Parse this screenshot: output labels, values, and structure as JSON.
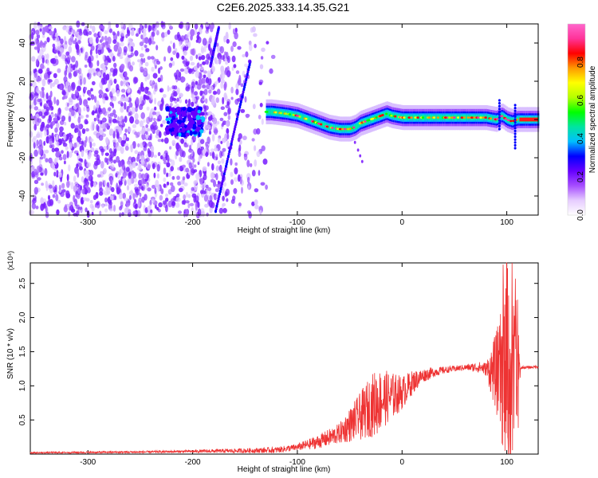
{
  "figure_title": "C2E6.2025.333.14.35.G21",
  "chart_data": [
    {
      "type": "heatmap",
      "panel": "top",
      "xlabel": "Height of straight line (km)",
      "ylabel": "Frequency (Hz)",
      "xlim": [
        -355,
        130
      ],
      "ylim": [
        -50,
        50
      ],
      "x_ticks": [
        -300,
        -200,
        -100,
        0,
        100
      ],
      "y_ticks": [
        -40,
        -20,
        0,
        20,
        40
      ],
      "colorbar": {
        "label": "Normalized spectral amplitude",
        "range": [
          0,
          1
        ],
        "ticks": [
          0.0,
          0.2,
          0.4,
          0.6,
          0.8
        ],
        "tick_labels": [
          "0.0",
          "0.2",
          "0.4",
          "0.6",
          "0.8"
        ],
        "colors": [
          "#ffffff",
          "#e6ccff",
          "#a64dff",
          "#6600ff",
          "#0000ff",
          "#00bfff",
          "#00e5a0",
          "#00ff00",
          "#b3ff00",
          "#ffff00",
          "#ff9900",
          "#ff0000",
          "#ff3399",
          "#ff66cc"
        ]
      },
      "ridge": {
        "x": [
          -125,
          -110,
          -100,
          -90,
          -80,
          -70,
          -60,
          -50,
          -45,
          -40,
          -35,
          -30,
          -25,
          -20,
          -15,
          -10,
          0,
          20,
          40,
          60,
          80,
          90,
          95,
          100,
          105,
          110,
          120,
          130
        ],
        "y": [
          4,
          3,
          2,
          0,
          -2,
          -4,
          -5,
          -5,
          -4,
          -2,
          -1,
          0,
          1,
          2,
          3,
          2,
          1,
          1,
          1,
          1,
          1,
          0,
          2,
          0,
          -1,
          0,
          0,
          0
        ],
        "peak_amplitude": 0.95
      },
      "streaks": [
        {
          "x": [
            -145,
            -178
          ],
          "y": [
            30,
            -48
          ]
        },
        {
          "x": [
            -175,
            -183
          ],
          "y": [
            48,
            28
          ]
        }
      ],
      "noise_region_x": [
        -355,
        -120
      ]
    },
    {
      "type": "line",
      "panel": "bottom",
      "xlabel": "Height of straight line (km)",
      "ylabel": "SNR (10 * v/v)",
      "y_multiplier": "(x10⁴)",
      "xlim": [
        -355,
        130
      ],
      "ylim": [
        0,
        2.8
      ],
      "x_ticks": [
        -300,
        -200,
        -100,
        0,
        100
      ],
      "y_ticks": [
        0.5,
        1.0,
        1.5,
        2.0,
        2.5
      ],
      "color": "#ee3333",
      "envelope": {
        "x": [
          -355,
          -250,
          -150,
          -120,
          -100,
          -80,
          -60,
          -40,
          -30,
          -20,
          -10,
          0,
          10,
          20,
          30,
          40,
          60,
          75,
          85,
          90,
          95,
          100,
          105,
          110,
          113,
          115,
          120,
          130
        ],
        "y": [
          0.02,
          0.03,
          0.05,
          0.06,
          0.1,
          0.18,
          0.3,
          0.55,
          0.7,
          0.8,
          0.85,
          0.9,
          1.05,
          1.15,
          1.2,
          1.23,
          1.27,
          1.27,
          1.22,
          1.2,
          1.15,
          1.1,
          1.0,
          0.9,
          1.25,
          1.27,
          1.27,
          1.28
        ]
      },
      "spread": {
        "x": [
          -355,
          -200,
          -100,
          -60,
          -40,
          -25,
          -10,
          0,
          20,
          40,
          60,
          80,
          90,
          100,
          110,
          113,
          130
        ],
        "y": [
          0.01,
          0.02,
          0.05,
          0.15,
          0.35,
          0.5,
          0.35,
          0.25,
          0.1,
          0.05,
          0.04,
          0.1,
          0.6,
          1.4,
          1.2,
          0.02,
          0.02
        ]
      }
    }
  ]
}
